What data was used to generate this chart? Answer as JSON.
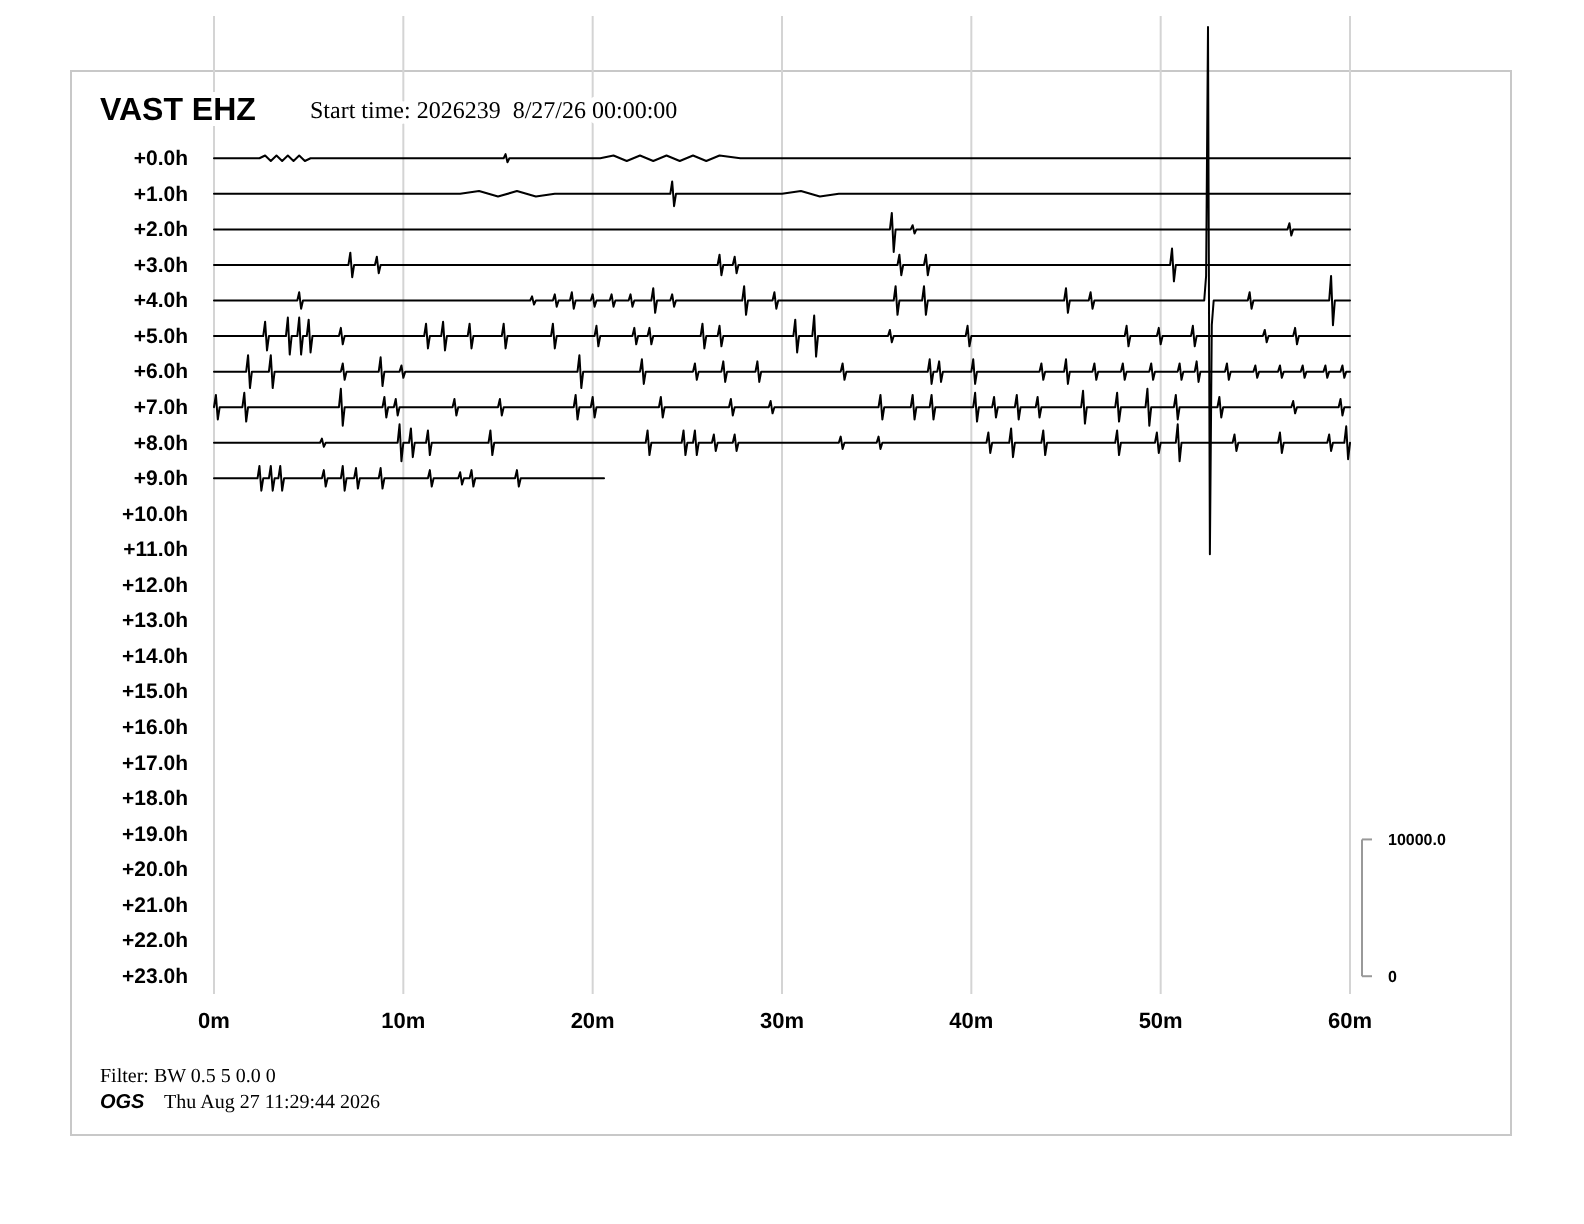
{
  "chart_data": {
    "type": "line",
    "title": "VAST EHZ",
    "subtitle": "Start time: 2026239  8/27/26 00:00:00",
    "annotations": [
      "Filter: BW 0.5 5 0.0 0",
      "OGS    Thu Aug 27 11:29:44 2026"
    ],
    "xlim": [
      0,
      60
    ],
    "xticks": [
      {
        "value": 0,
        "label": "0m"
      },
      {
        "value": 10,
        "label": "10m"
      },
      {
        "value": 20,
        "label": "20m"
      },
      {
        "value": 30,
        "label": "30m"
      },
      {
        "value": 40,
        "label": "40m"
      },
      {
        "value": 50,
        "label": "50m"
      },
      {
        "value": 60,
        "label": "60m"
      }
    ],
    "ylim": [
      23.5,
      -4
    ],
    "yticks": [
      {
        "value": 0,
        "label": "+0.0h"
      },
      {
        "value": 1,
        "label": "+1.0h"
      },
      {
        "value": 2,
        "label": "+2.0h"
      },
      {
        "value": 3,
        "label": "+3.0h"
      },
      {
        "value": 4,
        "label": "+4.0h"
      },
      {
        "value": 5,
        "label": "+5.0h"
      },
      {
        "value": 6,
        "label": "+6.0h"
      },
      {
        "value": 7,
        "label": "+7.0h"
      },
      {
        "value": 8,
        "label": "+8.0h"
      },
      {
        "value": 9,
        "label": "+9.0h"
      },
      {
        "value": 10,
        "label": "+10.0h"
      },
      {
        "value": 11,
        "label": "+11.0h"
      },
      {
        "value": 12,
        "label": "+12.0h"
      },
      {
        "value": 13,
        "label": "+13.0h"
      },
      {
        "value": 14,
        "label": "+14.0h"
      },
      {
        "value": 15,
        "label": "+15.0h"
      },
      {
        "value": 16,
        "label": "+16.0h"
      },
      {
        "value": 17,
        "label": "+17.0h"
      },
      {
        "value": 18,
        "label": "+18.0h"
      },
      {
        "value": 19,
        "label": "+19.0h"
      },
      {
        "value": 20,
        "label": "+20.0h"
      },
      {
        "value": 21,
        "label": "+21.0h"
      },
      {
        "value": 22,
        "label": "+22.0h"
      },
      {
        "value": 23,
        "label": "+23.0h"
      }
    ],
    "y2lim": [
      -1300,
      70200
    ],
    "y2ticks": [
      0,
      {
        "value": 10000,
        "label": "10000.0"
      }
    ],
    "grid": "x",
    "marker": "none",
    "line_style": "solid",
    "series": [
      {
        "color": "#000000",
        "axis": "y2",
        "x": [
          0,
          2.4,
          2.7,
          3.0,
          3.3,
          3.6,
          3.9,
          4.2,
          4.5,
          4.8,
          5.1,
          15.3,
          15.4,
          15.5,
          15.6,
          20.4,
          21.1,
          21.8,
          22.5,
          23.2,
          23.9,
          24.6,
          25.3,
          26.0,
          26.7,
          27.8,
          60
        ],
        "values": [
          59800,
          59800,
          60000,
          59600,
          60000,
          59600,
          60000,
          59600,
          60000,
          59600,
          59800,
          59800,
          60100,
          59500,
          59800,
          59800,
          60000,
          59600,
          60000,
          59600,
          60000,
          59600,
          60000,
          59600,
          60000,
          59800,
          59800
        ]
      },
      {
        "color": "#000000",
        "axis": "y2",
        "x": [
          0,
          13.0,
          14.0,
          15.0,
          16.0,
          17.0,
          18.0,
          24.1,
          24.2,
          24.3,
          24.4,
          30.0,
          31.0,
          32.0,
          33.0,
          60
        ],
        "values": [
          57200,
          57200,
          57400,
          57000,
          57400,
          57000,
          57200,
          57200,
          58100,
          56300,
          57200,
          57200,
          57400,
          57000,
          57200,
          57200
        ]
      },
      {
        "color": "#000000",
        "axis": "y2",
        "x": [
          0,
          35.7,
          35.8,
          35.9,
          36.0,
          36.8,
          36.9,
          37.0,
          37.1,
          56.7,
          56.8,
          56.9,
          57.0,
          60
        ],
        "values": [
          54600,
          54600,
          55800,
          52950,
          54600,
          54600,
          54900,
          54300,
          54600,
          54600,
          55050,
          54150,
          54600,
          54600
        ]
      },
      {
        "color": "#000000",
        "axis": "y2",
        "x": [
          0,
          7.1,
          7.2,
          7.3,
          7.4,
          8.5,
          8.6,
          8.7,
          8.8,
          26.6,
          26.7,
          26.8,
          26.9,
          27.4,
          27.5,
          27.6,
          27.7,
          36.1,
          36.2,
          36.3,
          36.4,
          37.5,
          37.6,
          37.7,
          37.8,
          50.5,
          50.6,
          50.7,
          50.8,
          60
        ],
        "values": [
          52000,
          52000,
          52900,
          51100,
          52000,
          52000,
          52600,
          51400,
          52000,
          52000,
          52750,
          51250,
          52000,
          52000,
          52600,
          51400,
          52000,
          52000,
          52750,
          51250,
          52000,
          52000,
          52750,
          51250,
          52000,
          52000,
          53200,
          50800,
          52000,
          52000
        ]
      },
      {
        "color": "#000000",
        "axis": "y2",
        "x": [
          0,
          4.4,
          4.5,
          4.6,
          4.7,
          16.7,
          16.8,
          16.9,
          17.0,
          17.9,
          18.0,
          18.1,
          18.2,
          18.8,
          18.9,
          19.0,
          19.1,
          19.9,
          20.0,
          20.1,
          20.2,
          20.9,
          21.0,
          21.1,
          21.2,
          21.9,
          22.0,
          22.1,
          22.2,
          23.1,
          23.2,
          23.3,
          23.4,
          24.1,
          24.2,
          24.3,
          24.4,
          27.9,
          28.0,
          28.1,
          28.2,
          29.5,
          29.6,
          29.7,
          29.8,
          35.9,
          36.0,
          36.1,
          36.2,
          37.4,
          37.5,
          37.6,
          37.7,
          44.9,
          45.0,
          45.1,
          45.2,
          46.2,
          46.3,
          46.4,
          46.5,
          52.3,
          52.4,
          52.5,
          52.6,
          52.7,
          52.8,
          54.6,
          54.7,
          54.8,
          54.9,
          58.9,
          59.0,
          59.1,
          59.2,
          60
        ],
        "values": [
          49400,
          49400,
          50000,
          48800,
          49400,
          49400,
          49700,
          49100,
          49400,
          49400,
          49850,
          48950,
          49400,
          49400,
          50000,
          48800,
          49400,
          49400,
          49850,
          48950,
          49400,
          49400,
          49850,
          48950,
          49400,
          49400,
          49850,
          48950,
          49400,
          49400,
          50300,
          48500,
          49400,
          49400,
          49850,
          48950,
          49400,
          49400,
          50450,
          48350,
          49400,
          49400,
          50000,
          48800,
          49400,
          49400,
          50450,
          48350,
          49400,
          49400,
          50450,
          48350,
          49400,
          49400,
          50300,
          48500,
          49400,
          49400,
          50000,
          48800,
          49400,
          49400,
          51200,
          69400,
          30850,
          47600,
          49400,
          49400,
          50000,
          48800,
          49400,
          49400,
          51200,
          47600,
          49400,
          49400
        ]
      },
      {
        "color": "#000000",
        "axis": "y2",
        "x": [
          0,
          2.6,
          2.7,
          2.8,
          2.9,
          3.8,
          3.9,
          4.0,
          4.1,
          4.4,
          4.5,
          4.6,
          4.7,
          4.9,
          5.0,
          5.1,
          5.2,
          6.6,
          6.7,
          6.8,
          6.9,
          11.1,
          11.2,
          11.3,
          11.4,
          12.0,
          12.1,
          12.2,
          12.3,
          13.4,
          13.5,
          13.6,
          13.7,
          15.2,
          15.3,
          15.4,
          15.5,
          17.8,
          17.9,
          18.0,
          18.1,
          20.1,
          20.2,
          20.3,
          20.4,
          22.1,
          22.2,
          22.3,
          22.4,
          22.9,
          23.0,
          23.1,
          23.2,
          25.7,
          25.8,
          25.9,
          26.0,
          26.6,
          26.7,
          26.8,
          26.9,
          30.6,
          30.7,
          30.8,
          30.9,
          31.6,
          31.7,
          31.8,
          31.9,
          35.6,
          35.7,
          35.8,
          35.9,
          39.7,
          39.8,
          39.9,
          40.0,
          48.1,
          48.2,
          48.3,
          48.4,
          49.8,
          49.9,
          50.0,
          50.1,
          51.6,
          51.7,
          51.8,
          51.9,
          55.4,
          55.5,
          55.6,
          55.7,
          57.0,
          57.1,
          57.2,
          57.3,
          60
        ],
        "values": [
          46800,
          46800,
          47850,
          45750,
          46800,
          46800,
          48150,
          45450,
          46800,
          46800,
          48150,
          45450,
          46800,
          46800,
          48000,
          45600,
          46800,
          46800,
          47400,
          46200,
          46800,
          46800,
          47700,
          45900,
          46800,
          46800,
          47850,
          45750,
          46800,
          46800,
          47700,
          45900,
          46800,
          46800,
          47700,
          45900,
          46800,
          46800,
          47700,
          45900,
          46800,
          46800,
          47550,
          46050,
          46800,
          46800,
          47400,
          46200,
          46800,
          46800,
          47400,
          46200,
          46800,
          46800,
          47700,
          45900,
          46800,
          46800,
          47550,
          46050,
          46800,
          46800,
          48000,
          45600,
          46800,
          46800,
          48300,
          45300,
          46800,
          46800,
          47250,
          46350,
          46800,
          46800,
          47550,
          46050,
          46800,
          46800,
          47550,
          46050,
          46800,
          46800,
          47400,
          46200,
          46800,
          46800,
          47550,
          46050,
          46800,
          46800,
          47250,
          46350,
          46800,
          46800,
          47400,
          46200,
          46800,
          46800
        ]
      },
      {
        "color": "#000000",
        "axis": "y2",
        "x": [
          0,
          1.7,
          1.8,
          1.9,
          2.0,
          2.9,
          3.0,
          3.1,
          3.2,
          6.7,
          6.8,
          6.9,
          7.0,
          8.7,
          8.8,
          8.9,
          9.0,
          9.8,
          9.9,
          10.0,
          10.1,
          19.2,
          19.3,
          19.4,
          19.5,
          22.5,
          22.6,
          22.7,
          22.8,
          25.3,
          25.4,
          25.5,
          25.6,
          26.8,
          26.9,
          27.0,
          27.1,
          28.6,
          28.7,
          28.8,
          28.9,
          33.1,
          33.2,
          33.3,
          33.4,
          37.7,
          37.8,
          37.9,
          38.0,
          38.2,
          38.3,
          38.4,
          38.5,
          40.0,
          40.1,
          40.2,
          40.3,
          43.6,
          43.7,
          43.8,
          43.9,
          44.9,
          45.0,
          45.1,
          45.2,
          46.4,
          46.5,
          46.6,
          46.7,
          47.9,
          48.0,
          48.1,
          48.2,
          49.4,
          49.5,
          49.6,
          49.7,
          50.9,
          51.0,
          51.1,
          51.2,
          51.8,
          51.9,
          52.0,
          52.1,
          53.4,
          53.5,
          53.6,
          53.7,
          54.9,
          55.0,
          55.1,
          55.2,
          56.2,
          56.3,
          56.4,
          56.5,
          57.4,
          57.5,
          57.6,
          57.7,
          58.6,
          58.7,
          58.8,
          58.9,
          59.5,
          59.6,
          59.7,
          59.8,
          60
        ],
        "values": [
          44200,
          44200,
          45400,
          43000,
          44200,
          44200,
          45400,
          43000,
          44200,
          44200,
          44800,
          43600,
          44200,
          44200,
          45250,
          43150,
          44200,
          44200,
          44650,
          43750,
          44200,
          44200,
          45400,
          43000,
          44200,
          44200,
          45100,
          43300,
          44200,
          44200,
          44800,
          43600,
          44200,
          44200,
          44950,
          43450,
          44200,
          44200,
          44950,
          43450,
          44200,
          44200,
          44800,
          43600,
          44200,
          44200,
          45100,
          43300,
          44200,
          44200,
          44950,
          43450,
          44200,
          44200,
          45100,
          43300,
          44200,
          44200,
          44800,
          43600,
          44200,
          44200,
          45100,
          43300,
          44200,
          44200,
          44800,
          43600,
          44200,
          44200,
          44800,
          43600,
          44200,
          44200,
          44800,
          43600,
          44200,
          44200,
          44800,
          43600,
          44200,
          44200,
          44950,
          43450,
          44200,
          44200,
          44800,
          43600,
          44200,
          44200,
          44650,
          43750,
          44200,
          44200,
          44650,
          43750,
          44200,
          44200,
          44650,
          43750,
          44200,
          44200,
          44650,
          43750,
          44200,
          44200,
          44650,
          43750,
          44200,
          44200
        ]
      },
      {
        "color": "#000000",
        "axis": "y2",
        "x": [
          0,
          0.1,
          0.2,
          0.3,
          1.5,
          1.6,
          1.7,
          1.8,
          6.6,
          6.7,
          6.8,
          6.9,
          8.9,
          9.0,
          9.1,
          9.2,
          9.5,
          9.6,
          9.7,
          9.8,
          12.6,
          12.7,
          12.8,
          12.9,
          15.0,
          15.1,
          15.2,
          15.3,
          19.0,
          19.1,
          19.2,
          19.3,
          19.9,
          20.0,
          20.1,
          20.2,
          23.5,
          23.6,
          23.7,
          23.8,
          27.2,
          27.3,
          27.4,
          27.5,
          29.3,
          29.4,
          29.5,
          29.6,
          35.1,
          35.2,
          35.3,
          35.4,
          36.8,
          36.9,
          37.0,
          37.1,
          37.8,
          37.9,
          38.0,
          38.1,
          40.1,
          40.2,
          40.3,
          40.4,
          41.1,
          41.2,
          41.3,
          41.4,
          42.3,
          42.4,
          42.5,
          42.6,
          43.4,
          43.5,
          43.6,
          43.7,
          45.8,
          45.9,
          46.0,
          46.1,
          47.6,
          47.7,
          47.8,
          47.9,
          49.2,
          49.3,
          49.4,
          49.5,
          50.7,
          50.8,
          50.9,
          51.0,
          53.0,
          53.1,
          53.2,
          53.3,
          56.9,
          57.0,
          57.1,
          57.2,
          59.4,
          59.5,
          59.6,
          59.7,
          60
        ],
        "values": [
          41600,
          42500,
          40700,
          41600,
          41600,
          42650,
          40550,
          41600,
          41600,
          42950,
          40250,
          41600,
          41600,
          42350,
          40850,
          41600,
          41600,
          42200,
          41000,
          41600,
          41600,
          42200,
          41000,
          41600,
          41600,
          42200,
          41000,
          41600,
          41600,
          42500,
          40700,
          41600,
          41600,
          42350,
          40850,
          41600,
          41600,
          42350,
          40850,
          41600,
          41600,
          42200,
          41000,
          41600,
          41600,
          42050,
          41150,
          41600,
          41600,
          42500,
          40700,
          41600,
          41600,
          42500,
          40700,
          41600,
          41600,
          42500,
          40700,
          41600,
          41600,
          42650,
          40550,
          41600,
          41600,
          42350,
          40850,
          41600,
          41600,
          42500,
          40700,
          41600,
          41600,
          42350,
          40850,
          41600,
          41600,
          42800,
          40400,
          41600,
          41600,
          42650,
          40550,
          41600,
          41600,
          42950,
          40250,
          41600,
          41600,
          42500,
          40700,
          41600,
          41600,
          42350,
          40850,
          41600,
          41600,
          42050,
          41150,
          41600,
          41600,
          42200,
          41000,
          41600,
          41600
        ]
      },
      {
        "color": "#000000",
        "axis": "y2",
        "x": [
          0,
          5.6,
          5.7,
          5.8,
          5.9,
          9.7,
          9.8,
          9.9,
          10.0,
          10.3,
          10.4,
          10.5,
          10.6,
          11.2,
          11.3,
          11.4,
          11.5,
          14.5,
          14.6,
          14.7,
          14.8,
          22.8,
          22.9,
          23.0,
          23.1,
          24.7,
          24.8,
          24.9,
          25.0,
          25.3,
          25.4,
          25.5,
          25.6,
          26.3,
          26.4,
          26.5,
          26.6,
          27.4,
          27.5,
          27.6,
          27.7,
          33.0,
          33.1,
          33.2,
          33.3,
          35.0,
          35.1,
          35.2,
          35.3,
          40.8,
          40.9,
          41.0,
          41.1,
          42.0,
          42.1,
          42.2,
          42.3,
          43.7,
          43.8,
          43.9,
          44.0,
          47.6,
          47.7,
          47.8,
          47.9,
          49.7,
          49.8,
          49.9,
          50.0,
          50.8,
          50.9,
          51.0,
          51.1,
          53.8,
          53.9,
          54.0,
          54.1,
          56.2,
          56.3,
          56.4,
          56.5,
          58.8,
          58.9,
          59.0,
          59.1,
          59.7,
          59.8,
          59.9,
          60.0
        ],
        "values": [
          39000,
          39000,
          39300,
          38700,
          39000,
          39000,
          40350,
          37650,
          39000,
          39000,
          40050,
          37950,
          39000,
          39000,
          39900,
          38100,
          39000,
          39000,
          39900,
          38100,
          39000,
          39000,
          39900,
          38100,
          39000,
          39000,
          39900,
          38100,
          39000,
          39000,
          39900,
          38100,
          39000,
          39000,
          39600,
          38400,
          39000,
          39000,
          39600,
          38400,
          39000,
          39000,
          39450,
          38550,
          39000,
          39000,
          39450,
          38550,
          39000,
          39000,
          39750,
          38250,
          39000,
          39000,
          40050,
          37950,
          39000,
          39000,
          39900,
          38100,
          39000,
          39000,
          39900,
          38100,
          39000,
          39000,
          39750,
          38250,
          39000,
          39000,
          40350,
          37650,
          39000,
          39000,
          39600,
          38400,
          39000,
          39000,
          39750,
          38250,
          39000,
          39000,
          39600,
          38400,
          39000,
          39000,
          40200,
          37800,
          39000
        ]
      },
      {
        "color": "#000000",
        "axis": "y2",
        "x": [
          0,
          2.3,
          2.4,
          2.5,
          2.6,
          2.9,
          3.0,
          3.1,
          3.2,
          3.4,
          3.5,
          3.6,
          3.7,
          5.7,
          5.8,
          5.9,
          6.0,
          6.7,
          6.8,
          6.9,
          7.0,
          7.4,
          7.5,
          7.6,
          7.7,
          8.7,
          8.8,
          8.9,
          9.0,
          11.3,
          11.4,
          11.5,
          11.6,
          12.9,
          13.0,
          13.1,
          13.2,
          13.5,
          13.6,
          13.7,
          13.8,
          15.9,
          16.0,
          16.1,
          16.2,
          20.6
        ],
        "values": [
          36400,
          36400,
          37300,
          35500,
          36400,
          36400,
          37300,
          35500,
          36400,
          36400,
          37300,
          35500,
          36400,
          36400,
          37000,
          35800,
          36400,
          36400,
          37300,
          35500,
          36400,
          36400,
          37150,
          35650,
          36400,
          36400,
          37150,
          35650,
          36400,
          36400,
          37000,
          35800,
          36400,
          36400,
          36850,
          35950,
          36400,
          36400,
          37000,
          35800,
          36400,
          36400,
          37000,
          35800,
          36400,
          36400
        ]
      }
    ]
  }
}
